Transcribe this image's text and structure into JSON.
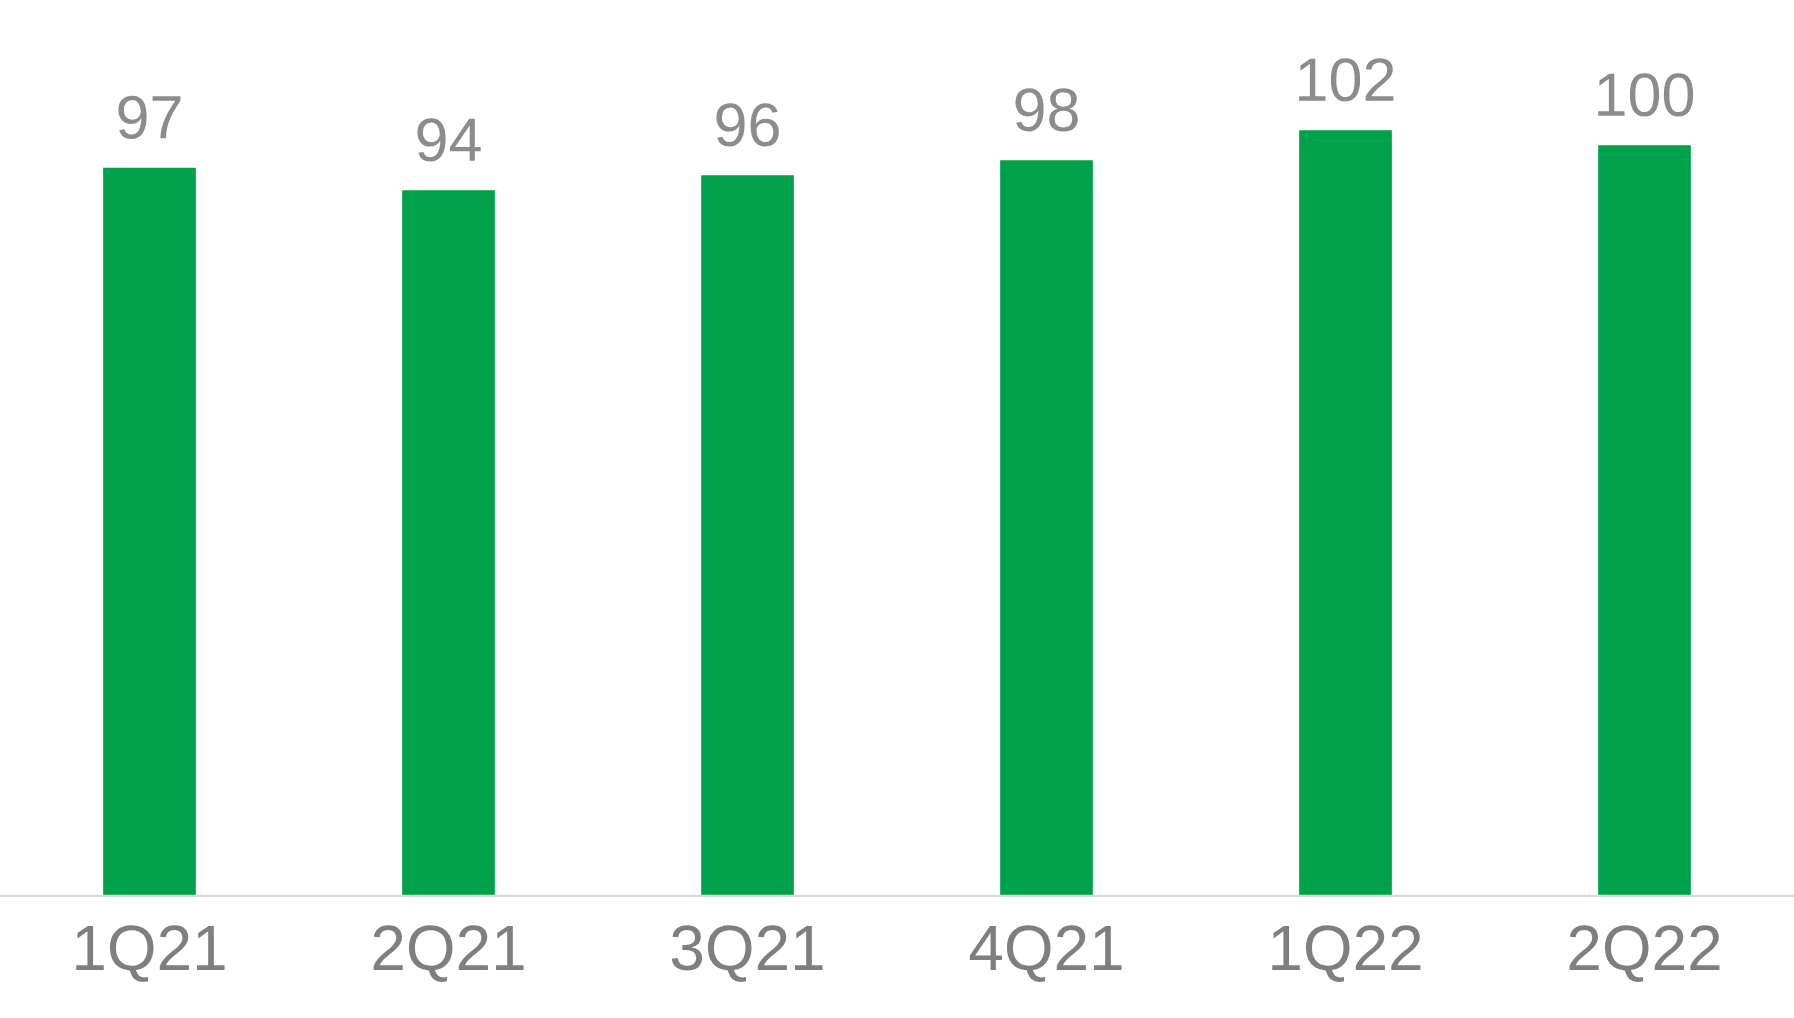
{
  "chart_data": {
    "type": "bar",
    "categories": [
      "1Q21",
      "2Q21",
      "3Q21",
      "4Q21",
      "1Q22",
      "2Q22"
    ],
    "values": [
      97,
      94,
      96,
      98,
      102,
      100
    ],
    "color": "#00a14b",
    "data_labels": true,
    "grid": false
  }
}
